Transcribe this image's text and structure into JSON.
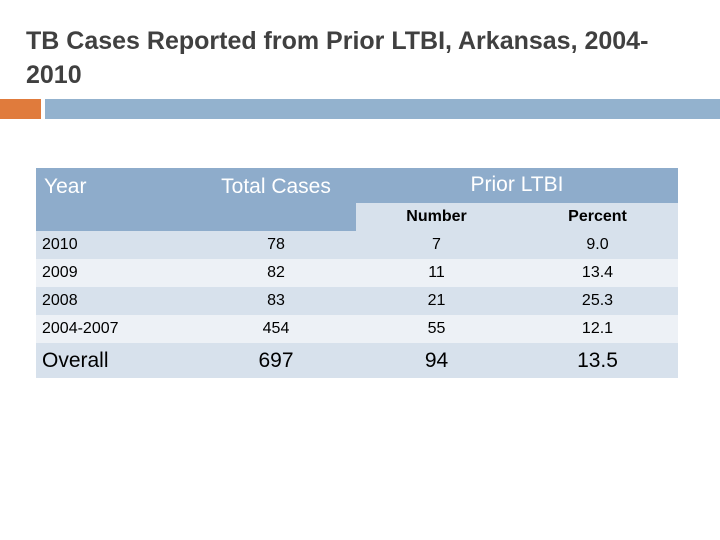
{
  "title": "TB Cases Reported from Prior LTBI, Arkansas, 2004-2010",
  "colors": {
    "accent_orange": "#e07b3c",
    "accent_blue": "#93b2ce",
    "header_bg": "#8eaccb",
    "row_dark": "#d7e1ec",
    "row_light": "#edf1f6"
  },
  "table": {
    "headers": {
      "year": "Year",
      "total": "Total Cases",
      "prior": "Prior LTBI",
      "number": "Number",
      "percent": "Percent"
    },
    "rows": [
      {
        "year": "2010",
        "total": "78",
        "number": "7",
        "percent": "9.0"
      },
      {
        "year": "2009",
        "total": "82",
        "number": "11",
        "percent": "13.4"
      },
      {
        "year": "2008",
        "total": "83",
        "number": "21",
        "percent": "25.3"
      },
      {
        "year": "2004-2007",
        "total": "454",
        "number": "55",
        "percent": "12.1"
      },
      {
        "year": "Overall",
        "total": "697",
        "number": "94",
        "percent": "13.5"
      }
    ]
  }
}
